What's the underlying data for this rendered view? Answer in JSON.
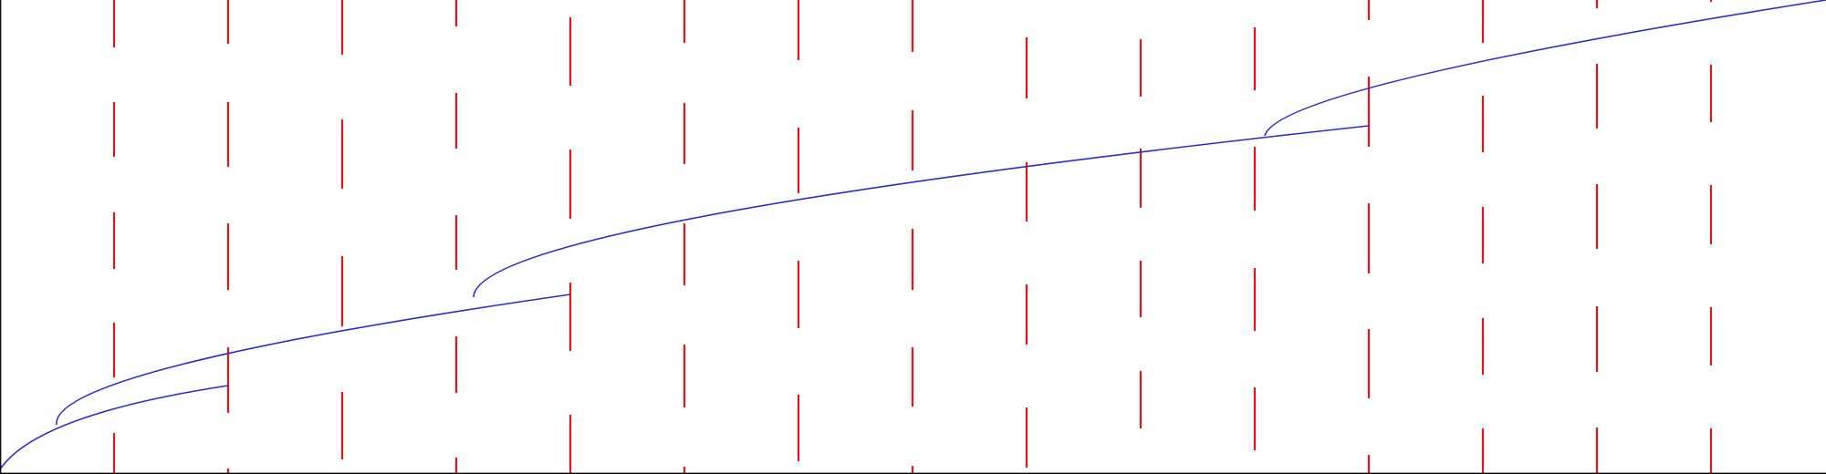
{
  "colors": {
    "segment": "#e8141a",
    "path": "#2b2bd4",
    "frame": "#000000",
    "background": "#ffffff"
  },
  "columns": [
    {
      "segments": [
        [
          0,
          52
        ],
        [
          112,
          172
        ],
        [
          233,
          295
        ],
        [
          354,
          414
        ],
        [
          475,
          520
        ]
      ]
    },
    {
      "segments": [
        [
          0,
          48
        ],
        [
          112,
          183
        ],
        [
          245,
          318
        ],
        [
          381,
          453
        ],
        [
          514,
          520
        ]
      ]
    },
    {
      "segments": [
        [
          0,
          60
        ],
        [
          131,
          207
        ],
        [
          281,
          358
        ],
        [
          430,
          504
        ]
      ]
    },
    {
      "segments": [
        [
          0,
          29
        ],
        [
          102,
          163
        ],
        [
          236,
          296
        ],
        [
          369,
          431
        ],
        [
          502,
          520
        ]
      ]
    },
    {
      "segments": [
        [
          19,
          94
        ],
        [
          164,
          240
        ],
        [
          310,
          385
        ],
        [
          455,
          520
        ]
      ]
    },
    {
      "segments": [
        [
          0,
          47
        ],
        [
          113,
          180
        ],
        [
          245,
          313
        ],
        [
          378,
          447
        ],
        [
          512,
          520
        ]
      ]
    },
    {
      "segments": [
        [
          0,
          66
        ],
        [
          140,
          212
        ],
        [
          286,
          360
        ],
        [
          433,
          506
        ]
      ]
    },
    {
      "segments": [
        [
          0,
          57
        ],
        [
          121,
          187
        ],
        [
          251,
          318
        ],
        [
          381,
          446
        ],
        [
          511,
          520
        ]
      ]
    },
    {
      "segments": [
        [
          41,
          108
        ],
        [
          178,
          243
        ],
        [
          312,
          378
        ],
        [
          447,
          513
        ]
      ]
    },
    {
      "segments": [
        [
          43,
          106
        ],
        [
          163,
          228
        ],
        [
          286,
          348
        ],
        [
          407,
          470
        ]
      ]
    },
    {
      "segments": [
        [
          30,
          99
        ],
        [
          161,
          231
        ],
        [
          294,
          363
        ],
        [
          425,
          494
        ]
      ]
    },
    {
      "segments": [
        [
          0,
          22
        ],
        [
          84,
          161
        ],
        [
          223,
          300
        ],
        [
          361,
          437
        ],
        [
          499,
          520
        ]
      ]
    },
    {
      "segments": [
        [
          0,
          47
        ],
        [
          105,
          167
        ],
        [
          227,
          289
        ],
        [
          349,
          411
        ],
        [
          470,
          520
        ]
      ]
    },
    {
      "segments": [
        [
          0,
          9
        ],
        [
          70,
          141
        ],
        [
          202,
          273
        ],
        [
          336,
          408
        ],
        [
          469,
          520
        ]
      ]
    },
    {
      "segments": [
        [
          0,
          2
        ],
        [
          71,
          134
        ],
        [
          203,
          268
        ],
        [
          337,
          401
        ],
        [
          470,
          520
        ]
      ]
    }
  ],
  "paths": [
    [
      [
        0,
        515
      ],
      [
        0.65,
        0.3
      ],
      [
        3.7,
        0.45
      ],
      [
        7.8,
        0.58
      ],
      [
        11.1,
        0.66
      ],
      [
        15.4,
        0.75
      ],
      [
        19.2,
        0.82
      ],
      [
        22.6,
        0.88
      ],
      [
        25.0,
        0.92
      ],
      [
        28.0,
        0.97
      ],
      [
        29.9,
        1.0
      ],
      [
        32.4,
        1.04
      ],
      [
        35.0,
        1.08
      ],
      [
        37.6,
        1.12
      ],
      [
        40.3,
        1.16
      ],
      [
        43.1,
        1.2
      ],
      [
        45.9,
        1.24
      ],
      [
        48.8,
        1.28
      ],
      [
        51.8,
        1.32
      ],
      [
        54.9,
        1.36
      ],
      [
        58.0,
        1.4
      ]
    ],
    [
      [
        58.0,
        462
      ],
      [
        -0.3,
        0.55
      ],
      [
        -0.6,
        0.5
      ],
      [
        -0.1,
        0.38
      ],
      [
        2.1,
        0.25
      ],
      [
        6.2,
        0.16
      ],
      [
        11.6,
        0.11
      ],
      [
        18.1,
        0.07
      ],
      [
        25.4,
        0.04
      ],
      [
        33.4,
        0.02
      ],
      [
        42.1,
        0.0
      ],
      [
        51.3,
        -0.02
      ],
      [
        61.0,
        -0.04
      ],
      [
        71.3,
        -0.06
      ],
      [
        82.1,
        -0.08
      ],
      [
        93.4,
        -0.1
      ],
      [
        105.2,
        -0.12
      ],
      [
        117.5,
        -0.14
      ],
      [
        130.3,
        -0.16
      ],
      [
        143.6,
        -0.18
      ],
      [
        157.4,
        -0.2
      ]
    ],
    [
      [
        450.0,
        323
      ],
      [
        -0.3,
        0.55
      ],
      [
        -0.6,
        0.5
      ],
      [
        -0.1,
        0.38
      ],
      [
        2.1,
        0.25
      ],
      [
        6.2,
        0.16
      ],
      [
        11.6,
        0.11
      ],
      [
        18.1,
        0.07
      ],
      [
        25.4,
        0.04
      ],
      [
        33.4,
        0.02
      ],
      [
        42.1,
        0.0
      ],
      [
        51.3,
        -0.02
      ],
      [
        61.0,
        -0.04
      ],
      [
        71.3,
        -0.06
      ],
      [
        82.1,
        -0.08
      ],
      [
        93.4,
        -0.1
      ],
      [
        105.2,
        -0.12
      ],
      [
        117.5,
        -0.14
      ],
      [
        130.3,
        -0.16
      ],
      [
        143.6,
        -0.18
      ],
      [
        155.0,
        -0.2
      ]
    ],
    [
      [
        1336.0,
        131
      ],
      [
        -0.3,
        0.55
      ],
      [
        -0.6,
        0.5
      ],
      [
        -0.1,
        0.38
      ],
      [
        2.1,
        0.25
      ],
      [
        6.2,
        0.16
      ],
      [
        11.6,
        0.11
      ],
      [
        18.1,
        0.07
      ],
      [
        25.4,
        0.04
      ],
      [
        33.4,
        0.02
      ],
      [
        42.1,
        0.0
      ],
      [
        51.3,
        -0.02
      ],
      [
        61.0,
        -0.04
      ],
      [
        71.3,
        -0.06
      ],
      [
        82.1,
        -0.08
      ],
      [
        93.4,
        -0.1
      ],
      [
        105.2,
        -0.12
      ],
      [
        117.5,
        -0.14
      ],
      [
        130.3,
        -0.16
      ],
      [
        143.6,
        -0.18
      ],
      [
        157.4,
        -0.2
      ]
    ]
  ]
}
